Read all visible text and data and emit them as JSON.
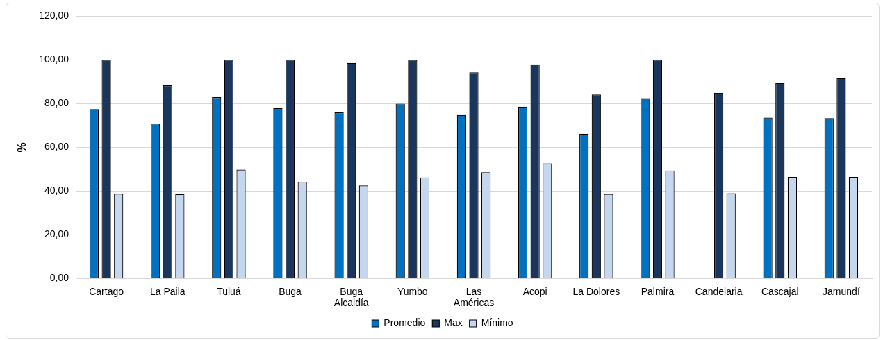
{
  "chart_data": {
    "type": "bar",
    "ylabel": "%",
    "categories": [
      "Cartago",
      "La Paila",
      "Tuluá",
      "Buga",
      "Buga Alcaldía",
      "Yumbo",
      "Las Américas",
      "Acopi",
      "La Dolores",
      "Palmira",
      "Candelaria",
      "Cascajal",
      "Jamundí"
    ],
    "series": [
      {
        "name": "Promedio",
        "color": "#0070c0",
        "values": [
          77.5,
          70.8,
          83.0,
          78.0,
          76.0,
          80.0,
          74.8,
          78.6,
          66.2,
          82.5,
          null,
          73.6,
          73.4
        ]
      },
      {
        "name": "Max",
        "color": "#1b365d",
        "values": [
          100,
          88.4,
          100,
          100,
          98.6,
          100,
          94.3,
          98.0,
          84.2,
          100,
          84.9,
          89.4,
          91.6
        ]
      },
      {
        "name": "Mínimo",
        "color": "#c5d7ef",
        "values": [
          38.8,
          38.6,
          49.8,
          44.2,
          42.6,
          46.2,
          48.6,
          52.7,
          38.7,
          49.4,
          39.0,
          46.5,
          46.5
        ]
      }
    ],
    "ylim": [
      0,
      120
    ],
    "yticks": [
      {
        "value": 0,
        "label": "0,00"
      },
      {
        "value": 20,
        "label": "20,00"
      },
      {
        "value": 40,
        "label": "40,00"
      },
      {
        "value": 60,
        "label": "60,00"
      },
      {
        "value": 80,
        "label": "80,00"
      },
      {
        "value": 100,
        "label": "100,00"
      },
      {
        "value": 120,
        "label": "120,00"
      }
    ],
    "grid": "y",
    "legend": "bottom"
  }
}
